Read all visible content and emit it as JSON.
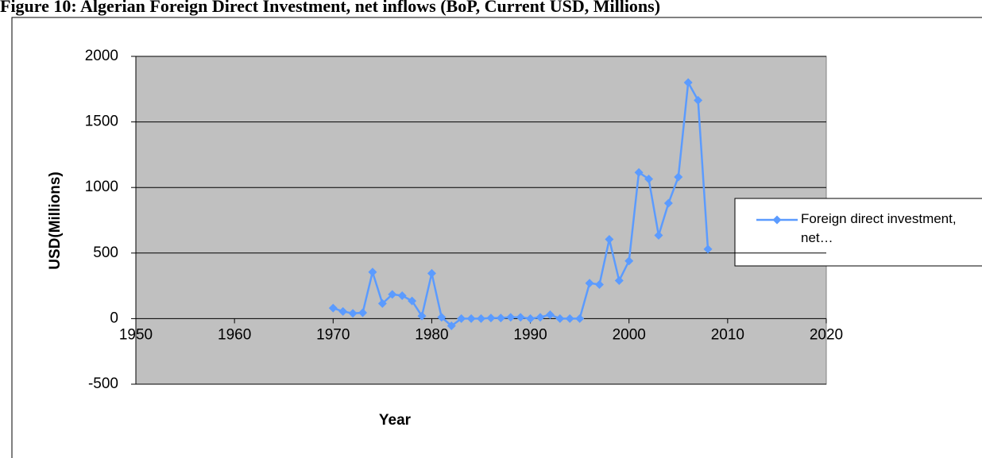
{
  "chart_data": {
    "type": "line",
    "title": "Figure 10: Algerian Foreign Direct Investment, net inflows (BoP, Current USD, Millions)",
    "x_label": "Year",
    "y_label": "USD(Millions)",
    "x": [
      1970,
      1971,
      1972,
      1973,
      1974,
      1975,
      1976,
      1977,
      1978,
      1979,
      1980,
      1981,
      1982,
      1983,
      1984,
      1985,
      1986,
      1987,
      1988,
      1989,
      1990,
      1991,
      1992,
      1993,
      1994,
      1995,
      1996,
      1997,
      1998,
      1999,
      2000,
      2001,
      2002,
      2003,
      2004,
      2005,
      2006,
      2007,
      2008
    ],
    "series": [
      {
        "name": "Foreign direct investment, net…",
        "color": "#5b9bff",
        "values": [
          80,
          55,
          40,
          45,
          355,
          115,
          185,
          175,
          135,
          20,
          345,
          10,
          -55,
          0,
          0,
          0,
          5,
          5,
          10,
          10,
          0,
          10,
          30,
          0,
          0,
          0,
          270,
          260,
          605,
          290,
          440,
          1115,
          1065,
          635,
          880,
          1080,
          1800,
          1665,
          530
        ]
      }
    ],
    "xlim": [
      1950,
      2020
    ],
    "xticks": [
      1950,
      1960,
      1970,
      1980,
      1990,
      2000,
      2010,
      2020
    ],
    "ylim": [
      -500,
      2000
    ],
    "yticks": [
      -500,
      0,
      500,
      1000,
      1500,
      2000
    ],
    "grid": true,
    "legend": "right"
  }
}
